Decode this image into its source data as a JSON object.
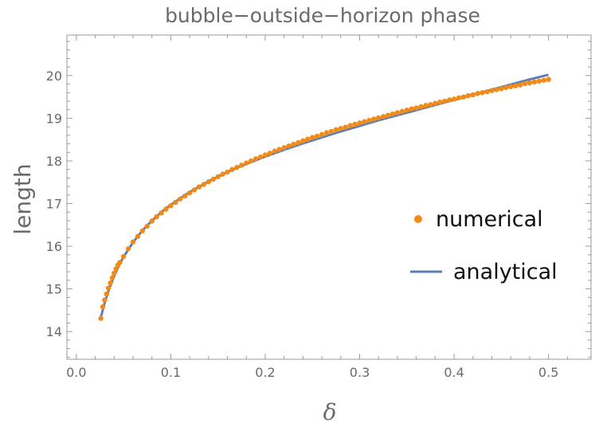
{
  "chart_data": {
    "type": "scatter",
    "title": "bubble−outside−horizon phase",
    "xlabel": "δ",
    "ylabel": "length",
    "xlim": [
      -0.01,
      0.545
    ],
    "ylim": [
      13.35,
      20.95
    ],
    "xticks": [
      0.0,
      0.1,
      0.2,
      0.3,
      0.4,
      0.5
    ],
    "xtick_labels": [
      "0.0",
      "0.1",
      "0.2",
      "0.3",
      "0.4",
      "0.5"
    ],
    "yticks": [
      14,
      15,
      16,
      17,
      18,
      19,
      20
    ],
    "ytick_labels": [
      "14",
      "15",
      "16",
      "17",
      "18",
      "19",
      "20"
    ],
    "grid": false,
    "legend_position": "right",
    "series": [
      {
        "name": "numerical",
        "kind": "points",
        "color": "#f28a17",
        "x": [
          0.026,
          0.028,
          0.03,
          0.032,
          0.034,
          0.036,
          0.038,
          0.04,
          0.042,
          0.044,
          0.046,
          0.05,
          0.055,
          0.06,
          0.065,
          0.07,
          0.075,
          0.08,
          0.085,
          0.09,
          0.095,
          0.1,
          0.105,
          0.11,
          0.115,
          0.12,
          0.125,
          0.13,
          0.135,
          0.14,
          0.145,
          0.15,
          0.155,
          0.16,
          0.165,
          0.17,
          0.175,
          0.18,
          0.185,
          0.19,
          0.195,
          0.2,
          0.205,
          0.21,
          0.215,
          0.22,
          0.225,
          0.23,
          0.235,
          0.24,
          0.245,
          0.25,
          0.255,
          0.26,
          0.265,
          0.27,
          0.275,
          0.28,
          0.285,
          0.29,
          0.295,
          0.3,
          0.305,
          0.31,
          0.315,
          0.32,
          0.325,
          0.33,
          0.335,
          0.34,
          0.345,
          0.35,
          0.355,
          0.36,
          0.365,
          0.37,
          0.375,
          0.38,
          0.385,
          0.39,
          0.395,
          0.4,
          0.405,
          0.41,
          0.415,
          0.42,
          0.425,
          0.43,
          0.435,
          0.44,
          0.445,
          0.45,
          0.455,
          0.46,
          0.465,
          0.47,
          0.475,
          0.48,
          0.485,
          0.49,
          0.495,
          0.5
        ],
        "y": [
          14.31,
          14.58,
          14.74,
          14.88,
          15.02,
          15.14,
          15.26,
          15.37,
          15.47,
          15.56,
          15.62,
          15.76,
          15.94,
          16.1,
          16.23,
          16.36,
          16.47,
          16.59,
          16.69,
          16.78,
          16.87,
          16.95,
          17.03,
          17.11,
          17.18,
          17.25,
          17.32,
          17.39,
          17.45,
          17.51,
          17.57,
          17.63,
          17.69,
          17.74,
          17.8,
          17.85,
          17.9,
          17.95,
          18.0,
          18.05,
          18.09,
          18.14,
          18.18,
          18.23,
          18.27,
          18.31,
          18.35,
          18.39,
          18.43,
          18.47,
          18.51,
          18.55,
          18.58,
          18.62,
          18.66,
          18.69,
          18.73,
          18.76,
          18.79,
          18.83,
          18.86,
          18.89,
          18.92,
          18.95,
          18.98,
          19.01,
          19.04,
          19.07,
          19.1,
          19.13,
          19.16,
          19.19,
          19.22,
          19.24,
          19.27,
          19.3,
          19.32,
          19.35,
          19.38,
          19.4,
          19.43,
          19.45,
          19.48,
          19.5,
          19.53,
          19.55,
          19.58,
          19.6,
          19.62,
          19.65,
          19.67,
          19.69,
          19.72,
          19.74,
          19.76,
          19.78,
          19.81,
          19.83,
          19.85,
          19.87,
          19.89,
          19.91
        ]
      },
      {
        "name": "analytical",
        "kind": "line",
        "color": "#5b7fb8",
        "x": [
          0.025,
          0.03,
          0.035,
          0.04,
          0.045,
          0.05,
          0.06,
          0.07,
          0.08,
          0.09,
          0.1,
          0.12,
          0.14,
          0.16,
          0.18,
          0.2,
          0.22,
          0.24,
          0.26,
          0.28,
          0.3,
          0.32,
          0.34,
          0.36,
          0.38,
          0.4,
          0.42,
          0.44,
          0.46,
          0.48,
          0.5
        ],
        "y": [
          14.26,
          14.67,
          15.02,
          15.3,
          15.54,
          15.75,
          16.09,
          16.37,
          16.6,
          16.8,
          16.97,
          17.27,
          17.52,
          17.74,
          17.93,
          18.1,
          18.26,
          18.41,
          18.55,
          18.69,
          18.82,
          18.95,
          19.07,
          19.19,
          19.31,
          19.43,
          19.55,
          19.67,
          19.79,
          19.91,
          20.02
        ]
      }
    ]
  }
}
